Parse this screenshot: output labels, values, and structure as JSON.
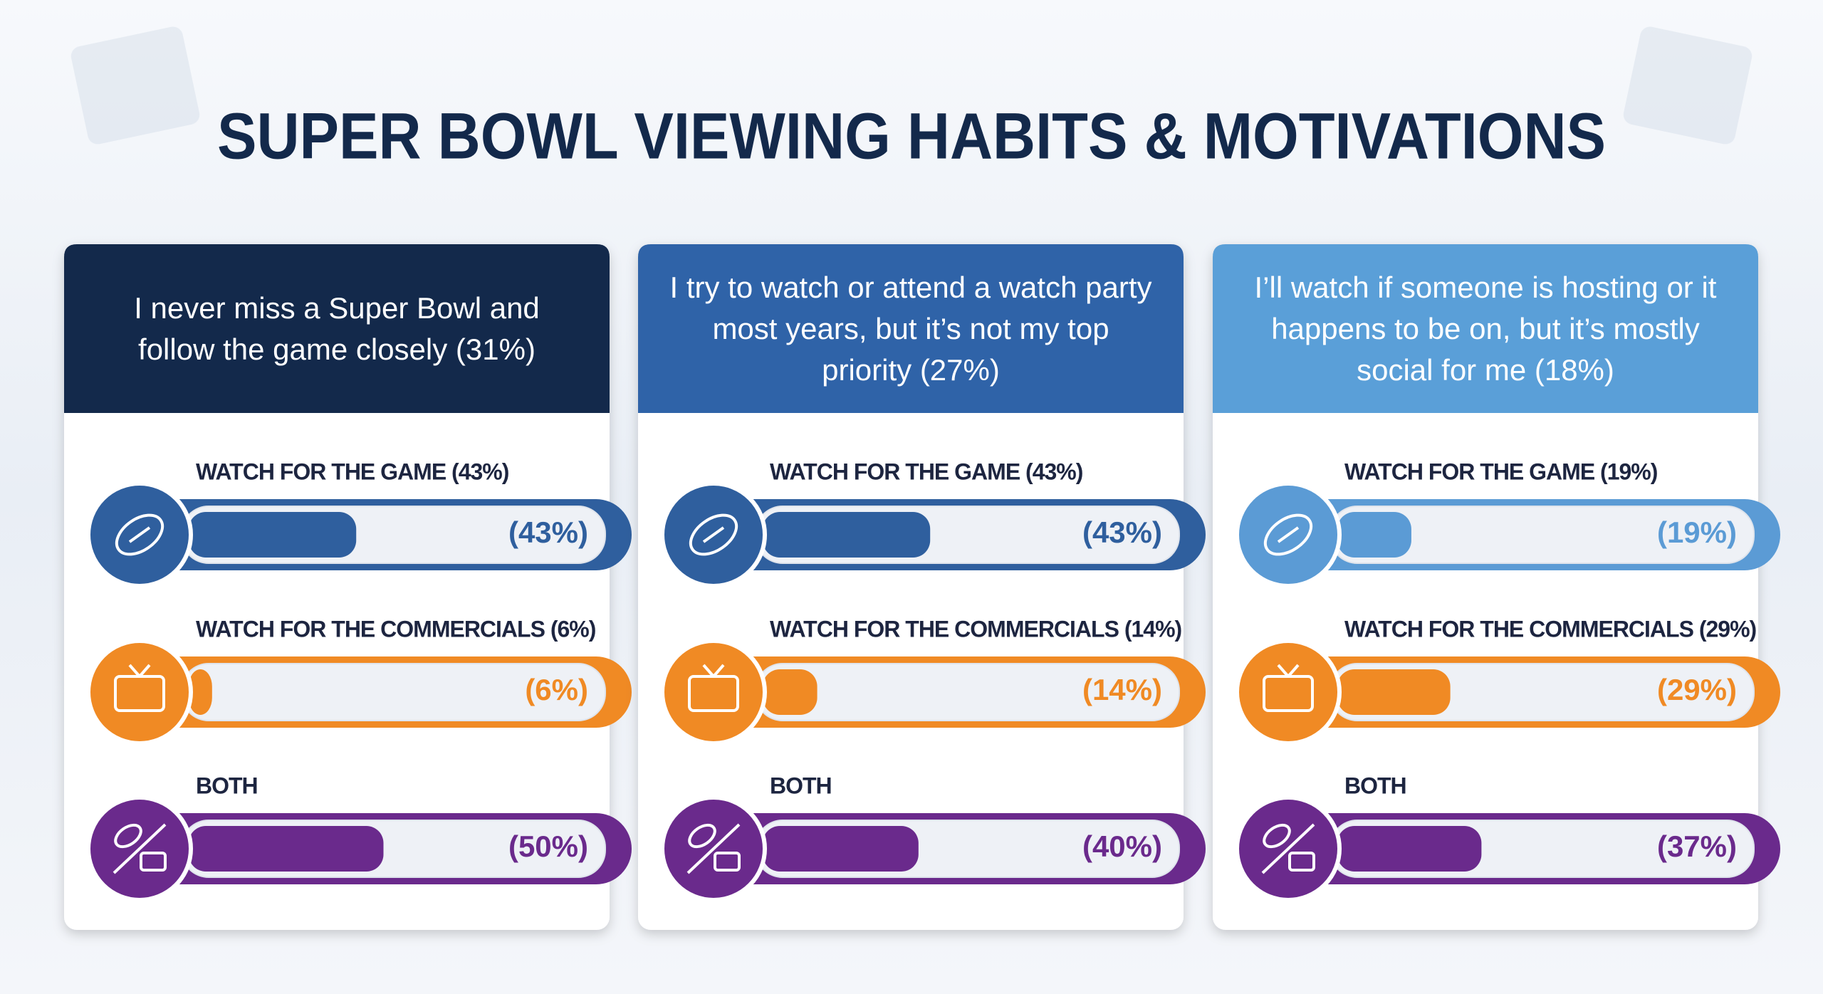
{
  "title": "SUPER BOWL VIEWING HABITS & MOTIVATIONS",
  "chart_data": [
    {
      "type": "bar",
      "orientation": "horizontal",
      "title": "I never miss a Super Bowl and follow the game closely (31%)",
      "header_color": "#13294b",
      "categories": [
        "WATCH FOR THE GAME (43%)",
        "WATCH FOR THE COMMERCIALS (6%)",
        "BOTH"
      ],
      "values": [
        43,
        6,
        50
      ],
      "value_labels": [
        "(43%)",
        "(6%)",
        "(50%)"
      ],
      "colors": [
        "#2f5f9e",
        "#f08a24",
        "#6a2a8c"
      ],
      "xlim": [
        0,
        100
      ]
    },
    {
      "type": "bar",
      "orientation": "horizontal",
      "title": "I try to watch or attend a watch party most years, but it’s not my top priority (27%)",
      "header_color": "#2f63a8",
      "categories": [
        "WATCH FOR THE GAME (43%)",
        "WATCH FOR THE COMMERCIALS (14%)",
        "BOTH"
      ],
      "values": [
        43,
        14,
        40
      ],
      "value_labels": [
        "(43%)",
        "(14%)",
        "(40%)"
      ],
      "colors": [
        "#2f5f9e",
        "#f08a24",
        "#6a2a8c"
      ],
      "xlim": [
        0,
        100
      ]
    },
    {
      "type": "bar",
      "orientation": "horizontal",
      "title": "I’ll watch if someone is hosting or it happens to be on, but it’s mostly social for me (18%)",
      "header_color": "#5a9fd8",
      "categories": [
        "WATCH FOR THE GAME (19%)",
        "WATCH FOR THE COMMERCIALS (29%)",
        "BOTH"
      ],
      "values": [
        19,
        29,
        37
      ],
      "value_labels": [
        "(19%)",
        "(29%)",
        "(37%)"
      ],
      "colors": [
        "#5b9bd5",
        "#f08a24",
        "#6a2a8c"
      ],
      "xlim": [
        0,
        100
      ]
    }
  ]
}
